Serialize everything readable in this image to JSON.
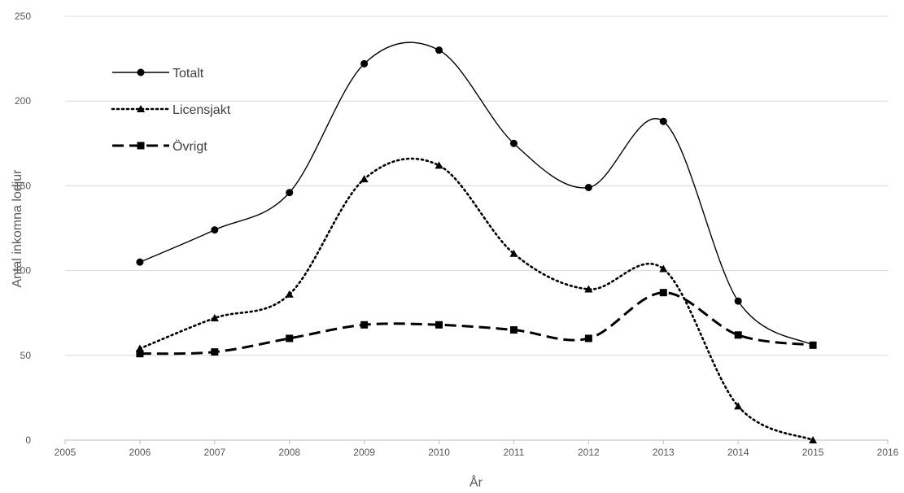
{
  "chart_data": {
    "type": "scatter",
    "xlabel": "År",
    "ylabel": "Antal inkomna lodjur",
    "xlim": [
      2005,
      2016
    ],
    "ylim": [
      0,
      250
    ],
    "x_ticks": [
      2005,
      2006,
      2007,
      2008,
      2009,
      2010,
      2011,
      2012,
      2013,
      2014,
      2015,
      2016
    ],
    "y_ticks": [
      0,
      50,
      100,
      150,
      200,
      250
    ],
    "grid": "horizontal",
    "legend_position": "top-left",
    "x": [
      2006,
      2007,
      2008,
      2009,
      2010,
      2011,
      2012,
      2013,
      2014,
      2015
    ],
    "series": [
      {
        "name": "Totalt",
        "values": [
          105,
          124,
          146,
          222,
          230,
          175,
          149,
          188,
          82,
          56
        ],
        "line_style": "solid",
        "marker": "circle",
        "color": "#000000"
      },
      {
        "name": "Licensjakt",
        "values": [
          54,
          72,
          86,
          154,
          162,
          110,
          89,
          101,
          20,
          0
        ],
        "line_style": "dotted",
        "marker": "triangle",
        "color": "#000000"
      },
      {
        "name": "Övrigt",
        "values": [
          51,
          52,
          60,
          68,
          68,
          65,
          60,
          87,
          62,
          56
        ],
        "line_style": "dashed",
        "marker": "square",
        "color": "#000000"
      }
    ]
  }
}
